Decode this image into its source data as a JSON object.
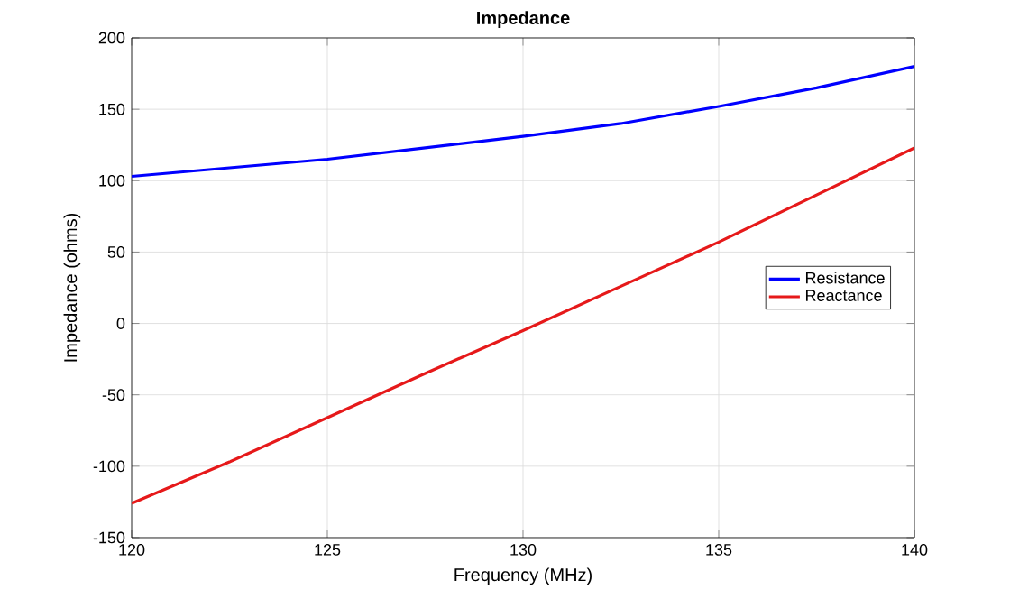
{
  "chart_data": {
    "type": "line",
    "title": "Impedance",
    "xlabel": "Frequency (MHz)",
    "ylabel": "Impedance (ohms)",
    "x": [
      120,
      122.5,
      125,
      127.5,
      130,
      132.5,
      135,
      137.5,
      140
    ],
    "series": [
      {
        "name": "Resistance",
        "color": "#0000ff",
        "values": [
          103,
          109,
          115,
          123,
          131,
          140,
          152,
          165,
          180
        ]
      },
      {
        "name": "Reactance",
        "color": "#e6191a",
        "values": [
          -126,
          -97,
          -66,
          -35,
          -5,
          26,
          57,
          90,
          123
        ]
      }
    ],
    "xlim": [
      120,
      140
    ],
    "ylim": [
      -150,
      200
    ],
    "xticks": [
      120,
      125,
      130,
      135,
      140
    ],
    "yticks": [
      -150,
      -100,
      -50,
      0,
      50,
      100,
      150,
      200
    ],
    "grid": true,
    "legend": "right",
    "marker": "none",
    "line_style": "solid"
  }
}
